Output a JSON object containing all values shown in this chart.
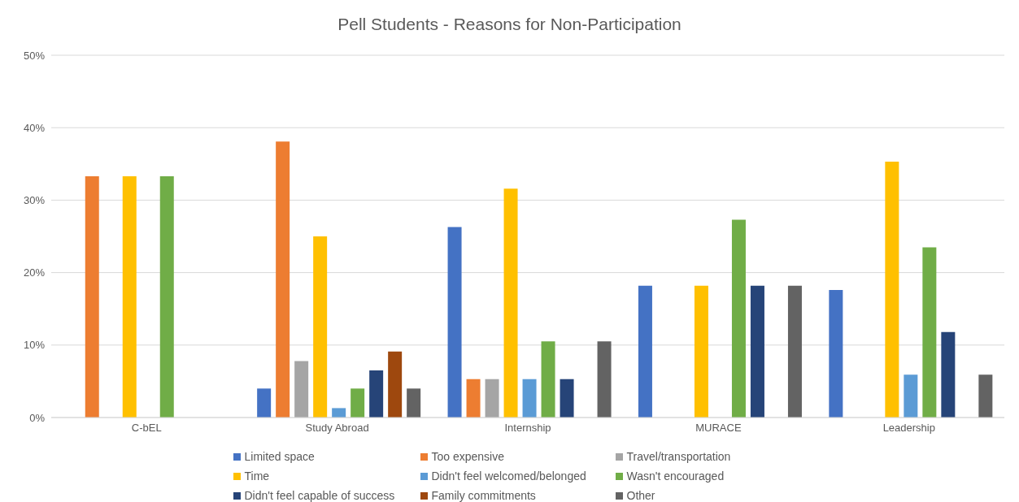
{
  "chart_data": {
    "type": "bar",
    "title": "Pell Students - Reasons for Non-Participation",
    "categories": [
      "C-bEL",
      "Study Abroad",
      "Internship",
      "MURACE",
      "Leadership"
    ],
    "series": [
      {
        "name": "Limited space",
        "color": "#4472c4",
        "values": [
          0,
          4,
          26.3,
          18.2,
          17.6
        ]
      },
      {
        "name": "Too expensive",
        "color": "#ed7d31",
        "values": [
          33.3,
          38.1,
          5.3,
          0,
          0
        ]
      },
      {
        "name": "Travel/transportation",
        "color": "#a5a5a5",
        "values": [
          0,
          7.8,
          5.3,
          0,
          0
        ]
      },
      {
        "name": "Time",
        "color": "#ffc000",
        "values": [
          33.3,
          25,
          31.6,
          18.2,
          35.3
        ]
      },
      {
        "name": "Didn't feel welcomed/belonged",
        "color": "#5b9bd5",
        "values": [
          0,
          1.3,
          5.3,
          0,
          5.9
        ]
      },
      {
        "name": "Wasn't encouraged",
        "color": "#70ad47",
        "values": [
          33.3,
          4,
          10.5,
          27.3,
          23.5
        ]
      },
      {
        "name": "Didn't feel capable of success",
        "color": "#264478",
        "values": [
          0,
          6.5,
          5.3,
          18.2,
          11.8
        ]
      },
      {
        "name": "Family commitments",
        "color": "#9e480e",
        "values": [
          0,
          9.1,
          0,
          0,
          0
        ]
      },
      {
        "name": "Other",
        "color": "#636363",
        "values": [
          0,
          4,
          10.5,
          18.2,
          5.9
        ]
      }
    ],
    "ylim": [
      0,
      50
    ],
    "yticks": [
      {
        "value": 0,
        "label": "0%"
      },
      {
        "value": 10,
        "label": "10%"
      },
      {
        "value": 20,
        "label": "20%"
      },
      {
        "value": 30,
        "label": "30%"
      },
      {
        "value": 40,
        "label": "40%"
      },
      {
        "value": 50,
        "label": "50%"
      }
    ],
    "grid": "y",
    "legend": "bottom"
  }
}
